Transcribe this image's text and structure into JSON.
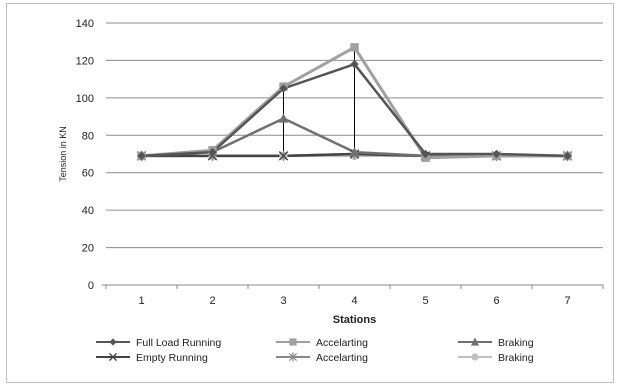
{
  "chart_data": {
    "type": "line",
    "title": "",
    "xlabel": "Stations",
    "ylabel": "Tension in KN",
    "categories": [
      "1",
      "2",
      "3",
      "4",
      "5",
      "6",
      "7"
    ],
    "yticks": [
      "0",
      "20",
      "40",
      "60",
      "80",
      "100",
      "120",
      "140"
    ],
    "ylim": [
      0,
      140
    ],
    "grid": "horizontal",
    "legend_position": "bottom",
    "series": [
      {
        "name": "Full Load Running",
        "values": [
          69,
          71,
          105,
          118,
          70,
          70,
          69
        ],
        "color": "#555555",
        "marker": "diamond"
      },
      {
        "name": "Accelarting",
        "values": [
          69,
          72,
          106,
          127,
          68,
          69,
          69
        ],
        "color": "#a0a0a0",
        "marker": "square"
      },
      {
        "name": "Braking",
        "values": [
          69,
          71,
          89,
          71,
          69,
          69,
          69
        ],
        "color": "#707070",
        "marker": "triangle"
      },
      {
        "name": "Empty Running",
        "values": [
          69,
          69,
          69,
          70,
          69,
          69,
          69
        ],
        "color": "#444444",
        "marker": "x"
      },
      {
        "name": "Accelarting",
        "values": [
          69,
          69,
          69,
          70,
          69,
          69,
          69
        ],
        "color": "#888888",
        "marker": "star"
      },
      {
        "name": "Braking",
        "values": [
          69,
          69,
          69,
          69,
          69,
          69,
          69
        ],
        "color": "#c0c0c0",
        "marker": "circle"
      }
    ],
    "drop_lines": [
      {
        "x": "3",
        "from": 69,
        "to": 106
      },
      {
        "x": "4",
        "from": 69,
        "to": 127
      }
    ]
  }
}
